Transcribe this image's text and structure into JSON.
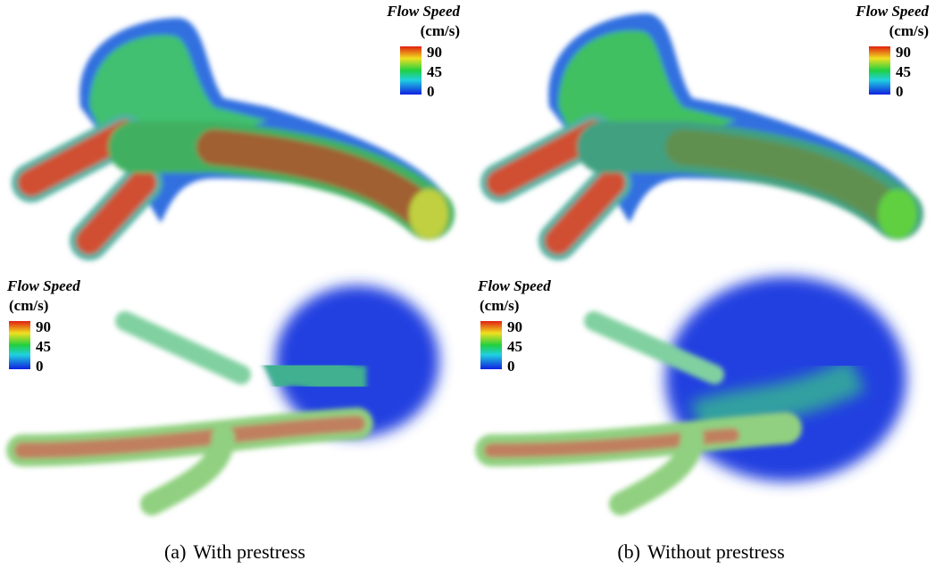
{
  "panels": [
    {
      "caption": {
        "label": "(a)",
        "text": "With prestress"
      },
      "renderings": [
        {
          "legend": {
            "title": "Flow Speed",
            "unit": "(cm/s)",
            "ticks": [
              90,
              45,
              0
            ]
          }
        },
        {
          "legend": {
            "title": "Flow Speed",
            "unit": "(cm/s)",
            "ticks": [
              90,
              45,
              0
            ]
          }
        }
      ]
    },
    {
      "caption": {
        "label": "(b)",
        "text": "Without prestress"
      },
      "renderings": [
        {
          "legend": {
            "title": "Flow Speed",
            "unit": "(cm/s)",
            "ticks": [
              90,
              45,
              0
            ]
          }
        },
        {
          "legend": {
            "title": "Flow Speed",
            "unit": "(cm/s)",
            "ticks": [
              90,
              45,
              0
            ]
          }
        }
      ]
    }
  ]
}
